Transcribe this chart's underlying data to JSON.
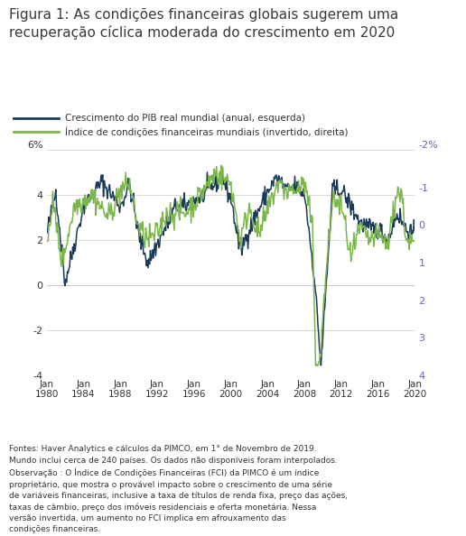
{
  "title_line1": "Figura 1: As condições financeiras globais sugerem uma",
  "title_line2": "recuperação cíclica moderada do crescimento em 2020",
  "title_color": "#3a3a3a",
  "legend1": "Crescimento do PIB real mundial (anual, esquerda)",
  "legend2": "Índice de condições financeiras mundiais (invertido, direita)",
  "color1": "#1a3a5c",
  "color2": "#7ab648",
  "right_tick_color": "#6a5acd",
  "left_ylim": [
    -4,
    6
  ],
  "right_ylim": [
    4,
    -2
  ],
  "left_yticks": [
    -4,
    -2,
    0,
    2,
    4
  ],
  "left_ytick_labels": [
    "-4",
    "-2",
    "0",
    "2",
    "4"
  ],
  "left_top_label": "6%",
  "right_yticks": [
    4,
    3,
    2,
    1,
    0,
    -1
  ],
  "right_ytick_labels": [
    "4",
    "3",
    "2",
    "1",
    "0",
    "-1"
  ],
  "right_top_label": "-2%",
  "footnote": "Fontes: Haver Analytics e cálculos da PIMCO, em 1° de Novembro de 2019.\nMundo inclui cerca de 240 países. Os dados não disponíveis foram interpolados.\nObservação : O Índice de Condições Financeiras (FCI) da PIMCO é um índice\nproprietário, que mostra o provável impacto sobre o crescimento de uma série\nde variáveis financeiras, inclusive a taxa de títulos de renda fixa, preço das ações,\ntaxas de câmbio, preço dos imóveis residenciais e oferta monetária. Nessa\nversão invertida, um aumento no FCI implica em afrouxamento das\ncondições financeiras.",
  "background_color": "#ffffff",
  "grid_color": "#cccccc",
  "n_months": 480,
  "year_start": 1980,
  "xtick_years": [
    1980,
    1984,
    1988,
    1992,
    1996,
    2000,
    2004,
    2008,
    2012,
    2016,
    2020
  ],
  "seed": 42
}
